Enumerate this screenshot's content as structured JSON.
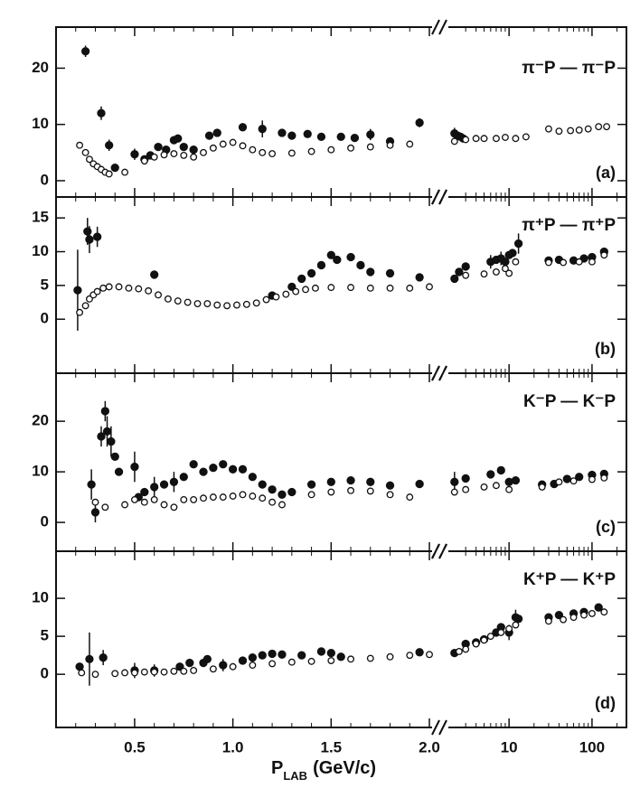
{
  "x_axis": {
    "label": {
      "symbol": "P",
      "subscript": "LAB",
      "unit": "(GeV/c)"
    },
    "segments": [
      {
        "scale": "linear",
        "xlim": [
          0.1,
          2.0
        ],
        "xticks": [
          0.5,
          {
            "value": 1.0,
            "label": "1.0"
          },
          1.5,
          {
            "value": 2.0,
            "label": "2.0"
          }
        ],
        "minor_xticks": [
          0.2,
          0.3,
          0.4,
          0.6,
          0.7,
          0.8,
          0.9,
          1.1,
          1.2,
          1.3,
          1.4,
          1.6,
          1.7,
          1.8,
          1.9
        ]
      },
      {
        "scale": "log",
        "xlim": [
          2.0,
          260
        ],
        "xticks": [
          10,
          100
        ],
        "minor_xticks": [
          3,
          4,
          5,
          6,
          7,
          8,
          9,
          20,
          30,
          40,
          50,
          60,
          70,
          80,
          90,
          200
        ]
      }
    ]
  },
  "chart_data": [
    {
      "type": "scatter",
      "title": "π⁻P — π⁻P",
      "label": "(a)",
      "ylim": [
        -2.9,
        27.3
      ],
      "yticks": [
        0,
        10,
        20
      ],
      "series": [
        {
          "name": "filled",
          "color": "#111",
          "marker": "filled",
          "x": [
            0.25,
            0.33,
            0.37,
            0.4,
            0.5,
            0.55,
            0.58,
            0.62,
            0.66,
            0.7,
            0.72,
            0.75,
            0.8,
            0.88,
            0.92,
            1.05,
            1.15,
            1.25,
            1.3,
            1.38,
            1.45,
            1.55,
            1.62,
            1.7,
            1.8,
            1.95,
            2.2,
            2.4,
            2.6,
            2.8
          ],
          "values": [
            23,
            12,
            6.3,
            2.3,
            4.7,
            3.8,
            4.5,
            6,
            5.5,
            7.2,
            7.5,
            6,
            5.5,
            8,
            8.5,
            9.5,
            9.2,
            8.5,
            8,
            8.3,
            7.8,
            7.8,
            7.6,
            8.2,
            7,
            10.3,
            8.4,
            8,
            7.8,
            7.5
          ],
          "errors": [
            1,
            1.2,
            1,
            null,
            1,
            null,
            null,
            null,
            null,
            null,
            null,
            null,
            null,
            null,
            null,
            null,
            1.5,
            null,
            null,
            null,
            null,
            null,
            null,
            1,
            null,
            0.8,
            1,
            null,
            null,
            null
          ]
        },
        {
          "name": "open",
          "color": "#111",
          "marker": "open",
          "x": [
            0.22,
            0.25,
            0.27,
            0.29,
            0.31,
            0.33,
            0.35,
            0.37,
            0.45,
            0.55,
            0.6,
            0.65,
            0.7,
            0.75,
            0.8,
            0.85,
            0.9,
            0.95,
            1.0,
            1.05,
            1.1,
            1.15,
            1.2,
            1.3,
            1.4,
            1.5,
            1.6,
            1.7,
            1.8,
            1.9,
            2.2,
            3,
            4,
            5,
            7,
            9,
            12,
            16,
            30,
            40,
            55,
            70,
            90,
            120,
            150
          ],
          "values": [
            6.3,
            5,
            3.8,
            3,
            2.5,
            2,
            1.5,
            1.2,
            1.5,
            3.5,
            4.2,
            4.6,
            4.8,
            4.5,
            4.2,
            5,
            5.8,
            6.5,
            6.8,
            6.2,
            5.5,
            5,
            4.8,
            4.9,
            5.2,
            5.5,
            5.8,
            6,
            6.3,
            6.5,
            7,
            7.3,
            7.5,
            7.5,
            7.5,
            7.7,
            7.5,
            7.8,
            9.2,
            8.8,
            8.9,
            9,
            9.2,
            9.6,
            9.6
          ]
        }
      ]
    },
    {
      "type": "scatter",
      "title": "π⁺P — π⁺P",
      "label": "(b)",
      "ylim": [
        -8,
        18.1
      ],
      "yticks": [
        0,
        5,
        10,
        15
      ],
      "series": [
        {
          "name": "filled",
          "color": "#111",
          "marker": "filled",
          "x": [
            0.21,
            0.26,
            0.27,
            0.31,
            0.6,
            1.2,
            1.3,
            1.35,
            1.4,
            1.45,
            1.5,
            1.53,
            1.6,
            1.65,
            1.7,
            1.8,
            1.95,
            2.2,
            2.5,
            3,
            6,
            7,
            8,
            9,
            10,
            11,
            13,
            30,
            40,
            60,
            80,
            100,
            140
          ],
          "values": [
            4.3,
            13,
            11.8,
            12.2,
            6.6,
            3.5,
            4.8,
            6,
            6.8,
            8,
            9.5,
            8.8,
            9.2,
            8,
            7,
            6.8,
            6.2,
            6,
            7,
            7.8,
            8.5,
            8.8,
            9,
            8.5,
            9.5,
            9.8,
            11.2,
            8.7,
            8.8,
            8.7,
            9,
            9.2,
            10
          ],
          "errors": [
            6,
            2,
            2,
            1.5,
            null,
            null,
            null,
            null,
            null,
            null,
            null,
            null,
            null,
            null,
            null,
            null,
            null,
            null,
            null,
            null,
            1,
            null,
            1,
            null,
            null,
            null,
            1.5,
            null,
            null,
            null,
            null,
            null,
            null
          ]
        },
        {
          "name": "open",
          "color": "#111",
          "marker": "open",
          "x": [
            0.22,
            0.25,
            0.27,
            0.29,
            0.31,
            0.34,
            0.37,
            0.42,
            0.47,
            0.52,
            0.57,
            0.62,
            0.67,
            0.72,
            0.77,
            0.82,
            0.87,
            0.92,
            0.97,
            1.02,
            1.07,
            1.12,
            1.17,
            1.22,
            1.27,
            1.32,
            1.37,
            1.42,
            1.5,
            1.6,
            1.7,
            1.8,
            1.9,
            2.0,
            3,
            5,
            7,
            9,
            10,
            12,
            30,
            45,
            70,
            100,
            140
          ],
          "values": [
            1,
            2,
            3,
            3.6,
            4.1,
            4.6,
            4.8,
            4.8,
            4.6,
            4.5,
            4.2,
            3.6,
            3,
            2.7,
            2.5,
            2.3,
            2.3,
            2.1,
            2,
            2.1,
            2.2,
            2.4,
            2.9,
            3.3,
            3.7,
            4.1,
            4.4,
            4.6,
            4.7,
            4.7,
            4.6,
            4.6,
            4.6,
            4.8,
            6.5,
            6.7,
            7,
            7.5,
            6.8,
            8.5,
            8.4,
            8.4,
            8.5,
            8.5,
            9.5
          ]
        }
      ]
    },
    {
      "type": "scatter",
      "title": "K⁻P — K⁻P",
      "label": "(c)",
      "ylim": [
        -5.7,
        29.5
      ],
      "yticks": [
        0,
        10,
        20
      ],
      "series": [
        {
          "name": "filled",
          "color": "#111",
          "marker": "filled",
          "x": [
            0.28,
            0.3,
            0.33,
            0.35,
            0.36,
            0.38,
            0.4,
            0.42,
            0.5,
            0.52,
            0.55,
            0.6,
            0.65,
            0.7,
            0.75,
            0.8,
            0.85,
            0.9,
            0.95,
            1.0,
            1.05,
            1.1,
            1.15,
            1.2,
            1.25,
            1.3,
            1.4,
            1.5,
            1.6,
            1.7,
            1.8,
            1.95,
            2.2,
            3,
            6,
            8,
            10,
            12,
            25,
            35,
            50,
            70,
            100,
            140
          ],
          "values": [
            7.5,
            2,
            17,
            22,
            18,
            16,
            13,
            10,
            11,
            5,
            6,
            7,
            7.5,
            8,
            9,
            11.5,
            10,
            10.8,
            11.5,
            10.5,
            10.5,
            9,
            7.5,
            6.5,
            5.5,
            6,
            7.5,
            8,
            8.3,
            8,
            7.3,
            7.6,
            8,
            8.7,
            9.5,
            10.3,
            8,
            8.3,
            7.5,
            7.6,
            8.6,
            9,
            9.4,
            9.6
          ],
          "errors": [
            3,
            2,
            2,
            2,
            3,
            3,
            null,
            null,
            3,
            null,
            null,
            2,
            null,
            2,
            null,
            null,
            null,
            null,
            null,
            null,
            null,
            null,
            null,
            null,
            null,
            null,
            null,
            null,
            null,
            null,
            null,
            null,
            2,
            null,
            null,
            null,
            null,
            null,
            null,
            null,
            null,
            null,
            null,
            null
          ]
        },
        {
          "name": "open",
          "color": "#111",
          "marker": "open",
          "x": [
            0.3,
            0.35,
            0.45,
            0.5,
            0.55,
            0.6,
            0.65,
            0.7,
            0.75,
            0.8,
            0.85,
            0.9,
            0.95,
            1.0,
            1.05,
            1.1,
            1.15,
            1.2,
            1.25,
            1.4,
            1.5,
            1.6,
            1.7,
            1.8,
            1.9,
            2.2,
            3,
            5,
            7,
            10,
            25,
            40,
            60,
            100,
            140
          ],
          "values": [
            4,
            3,
            3.5,
            4.5,
            4,
            4.5,
            3.5,
            3,
            4.5,
            4.5,
            4.8,
            5,
            5,
            5.2,
            5.5,
            5.2,
            4.8,
            4,
            3.5,
            5.5,
            6,
            6.3,
            6.2,
            5.5,
            5,
            6,
            6.5,
            7,
            7.3,
            6.5,
            7,
            8,
            8.2,
            8.5,
            8.8
          ]
        }
      ]
    },
    {
      "type": "scatter",
      "title": "K⁺P — K⁺P",
      "label": "(d)",
      "ylim": [
        -7,
        16.2
      ],
      "yticks": [
        0,
        5,
        10
      ],
      "series": [
        {
          "name": "filled",
          "color": "#111",
          "marker": "filled",
          "x": [
            0.22,
            0.27,
            0.34,
            0.5,
            0.6,
            0.73,
            0.78,
            0.85,
            0.87,
            0.95,
            1.05,
            1.1,
            1.15,
            1.2,
            1.25,
            1.35,
            1.45,
            1.5,
            1.55,
            1.95,
            2.2,
            3,
            4,
            5,
            7,
            8,
            10,
            12,
            13,
            30,
            40,
            60,
            80,
            120
          ],
          "values": [
            1,
            2,
            2.2,
            0.5,
            0.5,
            1,
            1.5,
            1.5,
            2,
            1.2,
            1.8,
            2.2,
            2.5,
            2.7,
            2.6,
            2.5,
            3,
            2.8,
            2.3,
            2.9,
            2.8,
            4,
            4.2,
            4.6,
            5.5,
            6.2,
            5.5,
            7.5,
            7.3,
            7.5,
            7.8,
            8,
            8.2,
            8.8
          ],
          "errors": [
            0.5,
            3.5,
            1,
            1,
            0.8,
            null,
            null,
            null,
            null,
            0.8,
            null,
            null,
            null,
            null,
            null,
            null,
            null,
            null,
            null,
            null,
            null,
            null,
            null,
            null,
            null,
            null,
            1,
            1,
            null,
            null,
            null,
            null,
            null,
            null
          ]
        },
        {
          "name": "open",
          "color": "#111",
          "marker": "open",
          "x": [
            0.23,
            0.3,
            0.4,
            0.45,
            0.5,
            0.55,
            0.6,
            0.65,
            0.7,
            0.75,
            0.8,
            0.9,
            1.0,
            1.1,
            1.2,
            1.3,
            1.4,
            1.5,
            1.6,
            1.7,
            1.8,
            1.9,
            2.0,
            2.5,
            3,
            4,
            5,
            6,
            8,
            10,
            12,
            30,
            45,
            60,
            80,
            100,
            140
          ],
          "values": [
            0.2,
            0,
            0.1,
            0.2,
            0.2,
            0.3,
            0.3,
            0.3,
            0.4,
            0.4,
            0.5,
            0.7,
            1,
            1.2,
            1.4,
            1.6,
            1.7,
            1.8,
            2,
            2.1,
            2.3,
            2.5,
            2.6,
            3,
            3.3,
            4,
            4.5,
            5,
            5.5,
            6,
            6.5,
            7,
            7.2,
            7.5,
            7.8,
            8,
            8.2
          ]
        }
      ]
    }
  ]
}
